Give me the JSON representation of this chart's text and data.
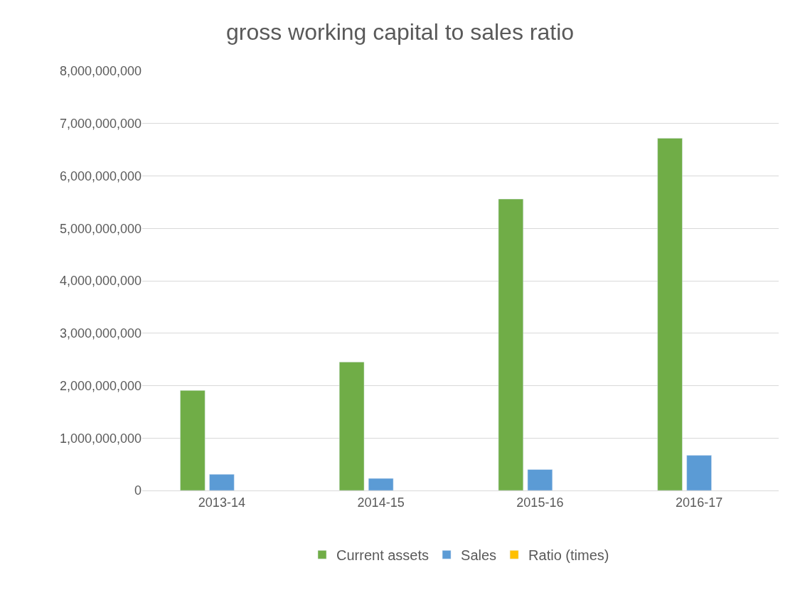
{
  "chart_data": {
    "type": "bar",
    "title": "gross working capital to sales ratio",
    "categories": [
      "2013-14",
      "2014-15",
      "2015-16",
      "2016-17"
    ],
    "series": [
      {
        "name": "Current assets",
        "color": "#70ad47",
        "values": [
          1910000000,
          2450000000,
          5560000000,
          6720000000
        ]
      },
      {
        "name": "Sales",
        "color": "#5b9bd5",
        "values": [
          310000000,
          230000000,
          400000000,
          670000000
        ]
      },
      {
        "name": "Ratio (times)",
        "color": "#ffc000",
        "values": [
          null,
          null,
          null,
          null
        ]
      }
    ],
    "ylim": [
      0,
      8000000000
    ],
    "yticks": [
      {
        "value": 0,
        "label": "0"
      },
      {
        "value": 1000000000,
        "label": "1,000,000,000"
      },
      {
        "value": 2000000000,
        "label": "2,000,000,000"
      },
      {
        "value": 3000000000,
        "label": "3,000,000,000"
      },
      {
        "value": 4000000000,
        "label": "4,000,000,000"
      },
      {
        "value": 5000000000,
        "label": "5,000,000,000"
      },
      {
        "value": 6000000000,
        "label": "6,000,000,000"
      },
      {
        "value": 7000000000,
        "label": "7,000,000,000"
      },
      {
        "value": 8000000000,
        "label": "8,000,000,000"
      }
    ],
    "grid": "y",
    "legend": "bottom"
  }
}
